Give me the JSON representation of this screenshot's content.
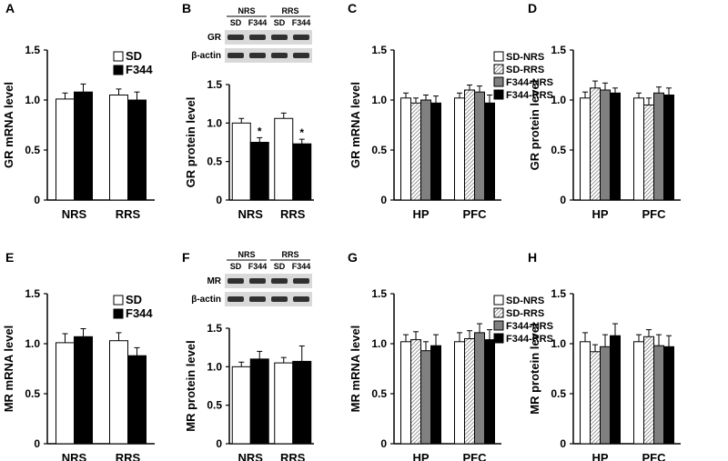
{
  "chart_data": [
    {
      "panel": "A",
      "type": "bar",
      "ylabel": "GR mRNA level",
      "ylim": [
        0,
        1.5
      ],
      "yticks": [
        "0",
        "0.5",
        "1.0",
        "1.5"
      ],
      "categories": [
        "NRS",
        "RRS"
      ],
      "legend": {
        "placement": "top-right"
      },
      "series": [
        {
          "name": "SD",
          "fill": "#ffffff",
          "values": [
            1.01,
            1.05
          ],
          "errors": [
            0.06,
            0.06
          ]
        },
        {
          "name": "F344",
          "fill": "#000000",
          "values": [
            1.08,
            1.0
          ],
          "errors": [
            0.08,
            0.08
          ]
        }
      ]
    },
    {
      "panel": "B",
      "type": "bar",
      "ylabel": "GR protein level",
      "ylim": [
        0,
        1.5
      ],
      "yticks": [
        "0",
        "0.5",
        "1.0",
        "1.5"
      ],
      "categories": [
        "NRS",
        "RRS"
      ],
      "blot": {
        "groups": [
          "NRS",
          "RRS"
        ],
        "lanes": [
          "SD",
          "F344",
          "SD",
          "F344"
        ],
        "rows": [
          "GR",
          "β-actin"
        ]
      },
      "significance": "*",
      "series": [
        {
          "name": "SD",
          "fill": "#ffffff",
          "values": [
            1.0,
            1.06
          ],
          "errors": [
            0.06,
            0.07
          ],
          "stars": [
            false,
            false
          ]
        },
        {
          "name": "F344",
          "fill": "#000000",
          "values": [
            0.75,
            0.73
          ],
          "errors": [
            0.06,
            0.06
          ],
          "stars": [
            true,
            true
          ]
        }
      ]
    },
    {
      "panel": "C",
      "type": "bar",
      "ylabel": "GR mRNA level",
      "ylim": [
        0,
        1.5
      ],
      "yticks": [
        "0",
        "0.5",
        "1.0",
        "1.5"
      ],
      "categories": [
        "HP",
        "PFC"
      ],
      "legend": {
        "placement": "top-right"
      },
      "series": [
        {
          "name": "SD-NRS",
          "fill": "#ffffff",
          "values": [
            1.02,
            1.02
          ],
          "errors": [
            0.05,
            0.05
          ]
        },
        {
          "name": "SD-RRS",
          "fill": "hatch",
          "values": [
            0.97,
            1.1
          ],
          "errors": [
            0.05,
            0.05
          ]
        },
        {
          "name": "F344-NRS",
          "fill": "#808080",
          "values": [
            1.0,
            1.08
          ],
          "errors": [
            0.05,
            0.06
          ]
        },
        {
          "name": "F344-RRS",
          "fill": "#000000",
          "values": [
            0.97,
            0.97
          ],
          "errors": [
            0.07,
            0.08
          ]
        }
      ]
    },
    {
      "panel": "D",
      "type": "bar",
      "ylabel": "GR protein level",
      "ylim": [
        0,
        1.5
      ],
      "yticks": [
        "0",
        "0.5",
        "1.0",
        "1.5"
      ],
      "categories": [
        "HP",
        "PFC"
      ],
      "series": [
        {
          "name": "SD-NRS",
          "fill": "#ffffff",
          "values": [
            1.02,
            1.02
          ],
          "errors": [
            0.06,
            0.05
          ]
        },
        {
          "name": "SD-RRS",
          "fill": "hatch",
          "values": [
            1.12,
            0.95
          ],
          "errors": [
            0.07,
            0.07
          ]
        },
        {
          "name": "F344-NRS",
          "fill": "#808080",
          "values": [
            1.1,
            1.07
          ],
          "errors": [
            0.07,
            0.06
          ]
        },
        {
          "name": "F344-RRS",
          "fill": "#000000",
          "values": [
            1.07,
            1.05
          ],
          "errors": [
            0.05,
            0.07
          ]
        }
      ]
    },
    {
      "panel": "E",
      "type": "bar",
      "ylabel": "MR mRNA level",
      "ylim": [
        0,
        1.5
      ],
      "yticks": [
        "0",
        "0.5",
        "1.0",
        "1.5"
      ],
      "categories": [
        "NRS",
        "RRS"
      ],
      "legend": {
        "placement": "top-right"
      },
      "series": [
        {
          "name": "SD",
          "fill": "#ffffff",
          "values": [
            1.01,
            1.03
          ],
          "errors": [
            0.09,
            0.08
          ]
        },
        {
          "name": "F344",
          "fill": "#000000",
          "values": [
            1.07,
            0.88
          ],
          "errors": [
            0.08,
            0.08
          ]
        }
      ]
    },
    {
      "panel": "F",
      "type": "bar",
      "ylabel": "MR protein level",
      "ylim": [
        0,
        1.5
      ],
      "yticks": [
        "0",
        "0.5",
        "1.0",
        "1.5"
      ],
      "categories": [
        "NRS",
        "RRS"
      ],
      "blot": {
        "groups": [
          "NRS",
          "RRS"
        ],
        "lanes": [
          "SD",
          "F344",
          "SD",
          "F344"
        ],
        "rows": [
          "MR",
          "β-actin"
        ]
      },
      "series": [
        {
          "name": "SD",
          "fill": "#ffffff",
          "values": [
            1.0,
            1.05
          ],
          "errors": [
            0.06,
            0.07
          ]
        },
        {
          "name": "F344",
          "fill": "#000000",
          "values": [
            1.1,
            1.07
          ],
          "errors": [
            0.1,
            0.2
          ]
        }
      ]
    },
    {
      "panel": "G",
      "type": "bar",
      "ylabel": "MR mRNA level",
      "ylim": [
        0,
        1.5
      ],
      "yticks": [
        "0",
        "0.5",
        "1.0",
        "1.5"
      ],
      "categories": [
        "HP",
        "PFC"
      ],
      "legend": {
        "placement": "top-right"
      },
      "series": [
        {
          "name": "SD-NRS",
          "fill": "#ffffff",
          "values": [
            1.02,
            1.02
          ],
          "errors": [
            0.07,
            0.09
          ]
        },
        {
          "name": "SD-RRS",
          "fill": "hatch",
          "values": [
            1.04,
            1.05
          ],
          "errors": [
            0.08,
            0.08
          ]
        },
        {
          "name": "F344-NRS",
          "fill": "#808080",
          "values": [
            0.93,
            1.11
          ],
          "errors": [
            0.09,
            0.09
          ]
        },
        {
          "name": "F344-RRS",
          "fill": "#000000",
          "values": [
            0.98,
            1.04
          ],
          "errors": [
            0.11,
            0.1
          ]
        }
      ]
    },
    {
      "panel": "H",
      "type": "bar",
      "ylabel": "MR protein level",
      "ylim": [
        0,
        1.5
      ],
      "yticks": [
        "0",
        "0.5",
        "1.0",
        "1.5"
      ],
      "categories": [
        "HP",
        "PFC"
      ],
      "series": [
        {
          "name": "SD-NRS",
          "fill": "#ffffff",
          "values": [
            1.02,
            1.02
          ],
          "errors": [
            0.09,
            0.07
          ]
        },
        {
          "name": "SD-RRS",
          "fill": "hatch",
          "values": [
            0.92,
            1.07
          ],
          "errors": [
            0.07,
            0.07
          ]
        },
        {
          "name": "F344-NRS",
          "fill": "#808080",
          "values": [
            0.97,
            0.98
          ],
          "errors": [
            0.12,
            0.11
          ]
        },
        {
          "name": "F344-RRS",
          "fill": "#000000",
          "values": [
            1.08,
            0.97
          ],
          "errors": [
            0.12,
            0.11
          ]
        }
      ]
    }
  ]
}
